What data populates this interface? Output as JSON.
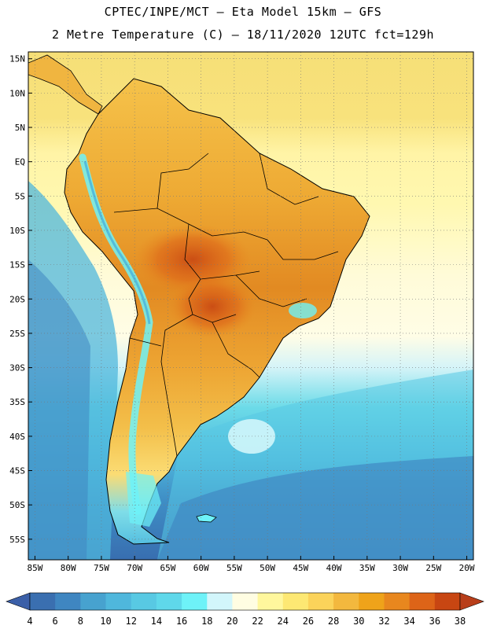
{
  "header": {
    "line1": "CPTEC/INPE/MCT –  Eta Model 15km – GFS",
    "line2": "2 Metre Temperature (C) – 18/11/2020 12UTC fct=129h"
  },
  "map": {
    "region": "South America",
    "lon_range": [
      -86,
      -19
    ],
    "lat_range": [
      16,
      -58
    ],
    "lat_labels": [
      {
        "lat": 15,
        "label": "15N"
      },
      {
        "lat": 10,
        "label": "10N"
      },
      {
        "lat": 5,
        "label": "5N"
      },
      {
        "lat": 0,
        "label": "EQ"
      },
      {
        "lat": -5,
        "label": "5S"
      },
      {
        "lat": -10,
        "label": "10S"
      },
      {
        "lat": -15,
        "label": "15S"
      },
      {
        "lat": -20,
        "label": "20S"
      },
      {
        "lat": -25,
        "label": "25S"
      },
      {
        "lat": -30,
        "label": "30S"
      },
      {
        "lat": -35,
        "label": "35S"
      },
      {
        "lat": -40,
        "label": "40S"
      },
      {
        "lat": -45,
        "label": "45S"
      },
      {
        "lat": -50,
        "label": "50S"
      },
      {
        "lat": -55,
        "label": "55S"
      }
    ],
    "lon_labels": [
      {
        "lon": -85,
        "label": "85W"
      },
      {
        "lon": -80,
        "label": "80W"
      },
      {
        "lon": -75,
        "label": "75W"
      },
      {
        "lon": -70,
        "label": "70W"
      },
      {
        "lon": -65,
        "label": "65W"
      },
      {
        "lon": -60,
        "label": "60W"
      },
      {
        "lon": -55,
        "label": "55W"
      },
      {
        "lon": -50,
        "label": "50W"
      },
      {
        "lon": -45,
        "label": "45W"
      },
      {
        "lon": -40,
        "label": "40W"
      },
      {
        "lon": -35,
        "label": "35W"
      },
      {
        "lon": -30,
        "label": "30W"
      },
      {
        "lon": -25,
        "label": "25W"
      },
      {
        "lon": -20,
        "label": "20W"
      }
    ]
  },
  "colorbar": {
    "labels": [
      "4",
      "6",
      "8",
      "10",
      "12",
      "14",
      "16",
      "18",
      "20",
      "22",
      "24",
      "26",
      "28",
      "30",
      "32",
      "34",
      "36",
      "38"
    ],
    "colors": [
      "#3a6fb0",
      "#3f86c1",
      "#47a2cf",
      "#4fb7dc",
      "#58c9e3",
      "#5fd8ea",
      "#6ef2f8",
      "#d2f6fb",
      "#fffde2",
      "#fff79d",
      "#fde873",
      "#fbd35a",
      "#f3b83e",
      "#efa31a",
      "#e8871e",
      "#dd6418",
      "#c84612"
    ],
    "under_color": "#3b5fa8",
    "over_color": "#b83e1a"
  }
}
